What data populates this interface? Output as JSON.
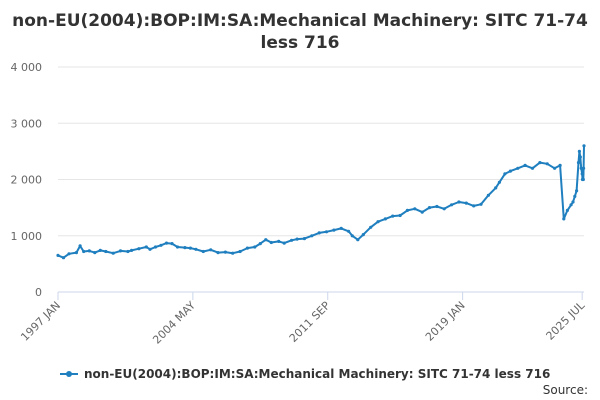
{
  "chart_data": {
    "type": "line",
    "title": "non-EU(2004):BOP:IM:SA:Mechanical Machinery: SITC 71-74",
    "title_line2": "less 716",
    "xlabel": "",
    "ylabel": "",
    "ylim": [
      0,
      4000
    ],
    "y_ticks": [
      "0",
      "1 000",
      "2 000",
      "3 000",
      "4 000"
    ],
    "y_tick_values": [
      0,
      1000,
      2000,
      3000,
      4000
    ],
    "x_ticks": [
      "1997 JAN",
      "2004 MAY",
      "2011 SEP",
      "2019 JAN",
      "2025 JUL"
    ],
    "x_tick_values": [
      1997.0,
      2004.333,
      2011.667,
      2019.0,
      2025.5
    ],
    "xlim": [
      1997.0,
      2025.6
    ],
    "grid": true,
    "legend_position": "bottom",
    "color": "#1f7fbf",
    "series": [
      {
        "name": "non-EU(2004):BOP:IM:SA:Mechanical Machinery: SITC 71-74 less 716",
        "points": [
          [
            1997.0,
            650
          ],
          [
            1997.3,
            610
          ],
          [
            1997.6,
            680
          ],
          [
            1998.0,
            700
          ],
          [
            1998.2,
            820
          ],
          [
            1998.4,
            720
          ],
          [
            1998.7,
            730
          ],
          [
            1999.0,
            700
          ],
          [
            1999.3,
            740
          ],
          [
            1999.6,
            720
          ],
          [
            2000.0,
            690
          ],
          [
            2000.4,
            730
          ],
          [
            2000.8,
            720
          ],
          [
            2001.0,
            740
          ],
          [
            2001.4,
            770
          ],
          [
            2001.8,
            800
          ],
          [
            2002.0,
            760
          ],
          [
            2002.3,
            800
          ],
          [
            2002.6,
            830
          ],
          [
            2002.9,
            870
          ],
          [
            2003.2,
            860
          ],
          [
            2003.5,
            800
          ],
          [
            2003.9,
            790
          ],
          [
            2004.2,
            780
          ],
          [
            2004.5,
            760
          ],
          [
            2004.9,
            720
          ],
          [
            2005.3,
            750
          ],
          [
            2005.7,
            700
          ],
          [
            2006.1,
            710
          ],
          [
            2006.5,
            690
          ],
          [
            2006.9,
            720
          ],
          [
            2007.3,
            780
          ],
          [
            2007.7,
            800
          ],
          [
            2008.0,
            860
          ],
          [
            2008.3,
            930
          ],
          [
            2008.6,
            880
          ],
          [
            2009.0,
            900
          ],
          [
            2009.3,
            870
          ],
          [
            2009.7,
            920
          ],
          [
            2010.0,
            940
          ],
          [
            2010.4,
            950
          ],
          [
            2010.8,
            1000
          ],
          [
            2011.2,
            1050
          ],
          [
            2011.6,
            1070
          ],
          [
            2012.0,
            1100
          ],
          [
            2012.4,
            1130
          ],
          [
            2012.8,
            1080
          ],
          [
            2013.0,
            1000
          ],
          [
            2013.3,
            930
          ],
          [
            2013.6,
            1020
          ],
          [
            2014.0,
            1150
          ],
          [
            2014.4,
            1250
          ],
          [
            2014.8,
            1300
          ],
          [
            2015.2,
            1350
          ],
          [
            2015.6,
            1360
          ],
          [
            2016.0,
            1450
          ],
          [
            2016.4,
            1480
          ],
          [
            2016.8,
            1420
          ],
          [
            2017.2,
            1500
          ],
          [
            2017.6,
            1520
          ],
          [
            2018.0,
            1480
          ],
          [
            2018.4,
            1550
          ],
          [
            2018.8,
            1600
          ],
          [
            2019.2,
            1580
          ],
          [
            2019.6,
            1530
          ],
          [
            2020.0,
            1560
          ],
          [
            2020.4,
            1720
          ],
          [
            2020.8,
            1850
          ],
          [
            2021.0,
            1950
          ],
          [
            2021.3,
            2100
          ],
          [
            2021.6,
            2150
          ],
          [
            2022.0,
            2200
          ],
          [
            2022.4,
            2250
          ],
          [
            2022.8,
            2200
          ],
          [
            2023.2,
            2300
          ],
          [
            2023.6,
            2280
          ],
          [
            2024.0,
            2200
          ],
          [
            2024.3,
            2250
          ],
          [
            2024.5,
            1300
          ],
          [
            2024.7,
            1450
          ],
          [
            2024.9,
            1550
          ],
          [
            2025.0,
            1600
          ],
          [
            2025.1,
            1700
          ],
          [
            2025.2,
            1800
          ],
          [
            2025.3,
            2300
          ],
          [
            2025.35,
            2500
          ],
          [
            2025.4,
            2400
          ],
          [
            2025.45,
            2200
          ],
          [
            2025.5,
            2100
          ],
          [
            2025.52,
            2000
          ],
          [
            2025.54,
            2100
          ],
          [
            2025.56,
            2000
          ],
          [
            2025.58,
            2200
          ],
          [
            2025.6,
            2600
          ]
        ]
      }
    ]
  },
  "source_label": "Source:"
}
